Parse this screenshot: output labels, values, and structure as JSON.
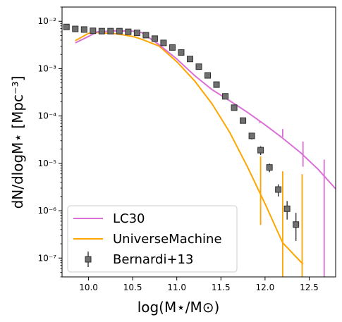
{
  "chart_data": {
    "type": "line",
    "title": "",
    "xlabel": "log(M⋆/M⊙)",
    "ylabel": "dN/dlogM⋆  [Mpc⁻³]",
    "xlim": [
      9.7,
      12.8
    ],
    "ylim": [
      4e-08,
      0.02
    ],
    "xscale": "linear",
    "yscale": "log",
    "grid": false,
    "legend_position": "lower-left",
    "x_ticks": [
      "10.0",
      "10.5",
      "11.0",
      "11.5",
      "12.0",
      "12.5"
    ],
    "y_ticks": [
      "10⁻⁷",
      "10⁻⁶",
      "10⁻⁵",
      "10⁻⁴",
      "10⁻³",
      "10⁻²"
    ],
    "series": [
      {
        "name": "LC30",
        "kind": "line",
        "color": "#da70d6",
        "x": [
          9.85,
          10.0,
          10.1,
          10.3,
          10.5,
          10.6,
          10.8,
          11.0,
          11.2,
          11.4,
          11.6,
          11.8,
          12.0,
          12.2,
          12.4,
          12.6,
          12.8
        ],
        "y": [
          0.0035,
          0.0048,
          0.006,
          0.0063,
          0.0062,
          0.0058,
          0.0032,
          0.0016,
          0.00072,
          0.00036,
          0.00021,
          0.00012,
          6.5e-05,
          3.4e-05,
          1.7e-05,
          7.5e-06,
          2.9e-06
        ],
        "error_bars": [
          {
            "x": 11.94,
            "y": 7.5e-05,
            "low": 7.1e-05,
            "high": 7.9e-05
          },
          {
            "x": 12.2,
            "y": 4.4e-05,
            "low": 3.6e-05,
            "high": 5.3e-05
          },
          {
            "x": 12.43,
            "y": 1.7e-05,
            "low": 8.5e-06,
            "high": 2.9e-05
          },
          {
            "x": 12.67,
            "y": 5.5e-06,
            "low": 4e-08,
            "high": 1.2e-05
          }
        ]
      },
      {
        "name": "UniverseMachine",
        "kind": "line",
        "color": "#ffa500",
        "x": [
          9.85,
          10.0,
          10.1,
          10.3,
          10.5,
          10.6,
          10.8,
          11.0,
          11.2,
          11.4,
          11.6,
          11.8,
          12.0,
          12.2,
          12.4,
          12.43
        ],
        "y": [
          0.0039,
          0.0056,
          0.0058,
          0.0055,
          0.0048,
          0.0042,
          0.003,
          0.0014,
          0.00056,
          0.00018,
          4.5e-05,
          8.5e-06,
          1.4e-06,
          2.1e-07,
          8.5e-08,
          7.5e-08
        ],
        "error_bars": [
          {
            "x": 11.95,
            "y": 2.3e-06,
            "low": 5e-07,
            "high": 1.4e-05
          },
          {
            "x": 12.2,
            "y": 2.1e-07,
            "low": 4e-08,
            "high": 6.8e-06
          },
          {
            "x": 12.42,
            "y": 8e-08,
            "low": 4e-08,
            "high": 5.9e-06
          }
        ]
      },
      {
        "name": "Bernardi+13",
        "kind": "scatter",
        "marker": "square",
        "color": "#707070",
        "edgecolor": "#303030",
        "x": [
          9.75,
          9.85,
          9.95,
          10.05,
          10.15,
          10.25,
          10.35,
          10.45,
          10.55,
          10.65,
          10.75,
          10.85,
          10.95,
          11.05,
          11.15,
          11.25,
          11.35,
          11.45,
          11.55,
          11.65,
          11.75,
          11.85,
          11.95,
          12.05,
          12.15,
          12.25,
          12.35
        ],
        "y": [
          0.0076,
          0.0069,
          0.0067,
          0.0063,
          0.0062,
          0.0062,
          0.0062,
          0.006,
          0.0057,
          0.0051,
          0.0043,
          0.0035,
          0.0028,
          0.0022,
          0.0016,
          0.0011,
          0.00072,
          0.00046,
          0.00026,
          0.00015,
          8e-05,
          3.8e-05,
          1.9e-05,
          8.2e-06,
          2.8e-06,
          1.1e-06,
          5.1e-07
        ],
        "yerr_low": [
          0.0074,
          0.0067,
          0.0065,
          0.0061,
          0.006,
          0.006,
          0.006,
          0.0058,
          0.0055,
          0.0049,
          0.0041,
          0.0033,
          0.0026,
          0.002,
          0.0015,
          0.001,
          0.00066,
          0.00042,
          0.00023,
          0.00013,
          6.9e-05,
          3.2e-05,
          1.5e-05,
          6.5e-06,
          2e-06,
          6.5e-07,
          2.3e-07
        ],
        "yerr_high": [
          0.0078,
          0.0071,
          0.0069,
          0.0065,
          0.0064,
          0.0064,
          0.0064,
          0.0062,
          0.0059,
          0.0053,
          0.0045,
          0.0037,
          0.003,
          0.0024,
          0.0017,
          0.0012,
          0.00078,
          0.0005,
          0.00029,
          0.00017,
          9.1e-05,
          4.4e-05,
          2.3e-05,
          9.9e-06,
          3.6e-06,
          1.6e-06,
          9e-07
        ]
      }
    ]
  }
}
